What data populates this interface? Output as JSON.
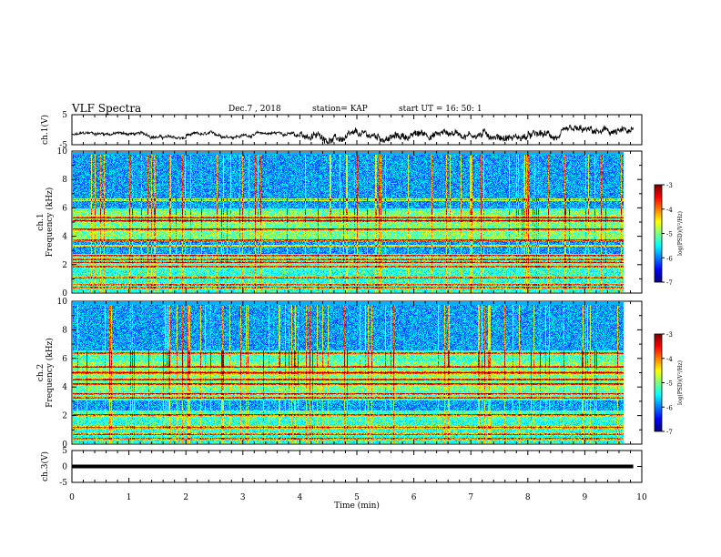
{
  "header": {
    "title": "VLF Spectra",
    "date": "Dec.7 , 2018",
    "station": "station= KAP",
    "start": "start UT =  16: 50: 1"
  },
  "chart_data": [
    {
      "type": "line",
      "ylabel": "ch.1(V)",
      "ylim": [
        -5,
        5
      ],
      "yticks": [
        "5",
        "-5"
      ],
      "xlim": [
        0,
        10
      ],
      "x_end_min": 9.85,
      "baseline_v": -2.5,
      "fluctuation_v": 1.8
    },
    {
      "type": "heatmap",
      "ylabel": "ch.1\nFrequency (kHz)",
      "ylim": [
        0,
        10
      ],
      "yticks": [
        "0",
        "2",
        "4",
        "6",
        "8",
        "10"
      ],
      "xlim": [
        0,
        10
      ],
      "x_end_min": 9.85,
      "colorbar": {
        "label": "log(PSD)(V²/Hz)",
        "range": [
          -7,
          -3
        ],
        "ticks": [
          "-3",
          "-4",
          "-5",
          "-6",
          "-7"
        ]
      },
      "bands_khz": [
        0.3,
        0.5,
        1.0,
        1.8,
        2.1,
        2.3,
        2.6,
        3.3,
        3.7,
        4.5,
        5.1,
        5.3,
        6.6
      ],
      "quiet_bands_khz": [
        [
          2.7,
          3.6
        ],
        [
          6.0,
          10.0
        ]
      ]
    },
    {
      "type": "heatmap",
      "ylabel": "ch.2\nFrequency (kHz)",
      "ylim": [
        0,
        10
      ],
      "yticks": [
        "0",
        "2",
        "4",
        "6",
        "8",
        "10"
      ],
      "xlim": [
        0,
        10
      ],
      "x_end_min": 9.85,
      "colorbar": {
        "label": "log(PSD)(V²/Hz)",
        "range": [
          -7,
          -3
        ],
        "ticks": [
          "-3",
          "-4",
          "-5",
          "-6",
          "-7"
        ]
      },
      "bands_khz": [
        0.3,
        0.6,
        1.1,
        2.0,
        3.2,
        3.5,
        4.2,
        4.5,
        5.0,
        5.4,
        6.4
      ],
      "quiet_bands_khz": [
        [
          2.3,
          3.0
        ],
        [
          6.6,
          10.0
        ]
      ]
    },
    {
      "type": "line",
      "ylabel": "ch.3(V)",
      "ylim": [
        -5,
        5
      ],
      "yticks": [
        "5",
        "0",
        "-5"
      ],
      "xlim": [
        0,
        10
      ],
      "x_end_min": 9.85,
      "constant_v": 0
    }
  ],
  "xaxis": {
    "label": "Time (min)",
    "ticks": [
      "0",
      "1",
      "2",
      "3",
      "4",
      "5",
      "6",
      "7",
      "8",
      "9",
      "10"
    ]
  },
  "colors": {
    "axis": "#000000",
    "line": "#000000",
    "background": "#ffffff"
  }
}
